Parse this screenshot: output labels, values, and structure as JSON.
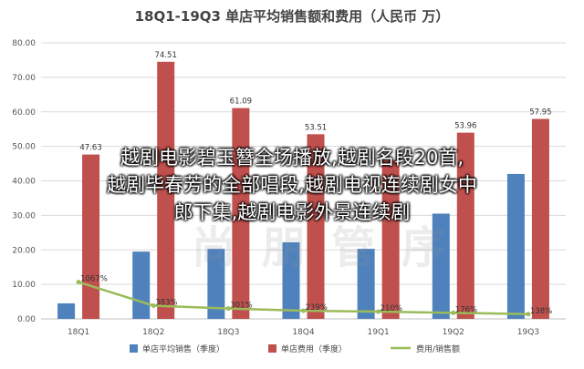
{
  "chart_data": {
    "type": "bar",
    "title": "18Q1-19Q3 单店平均销售额和费用（人民币 万）",
    "categories": [
      "18Q1",
      "18Q2",
      "18Q3",
      "18Q4",
      "19Q1",
      "19Q2",
      "19Q3"
    ],
    "yticks": [
      "0.00",
      "10.00",
      "20.00",
      "30.00",
      "40.00",
      "50.00",
      "60.00",
      "70.00",
      "80.00"
    ],
    "ylim": [
      0,
      80
    ],
    "grid": true,
    "legend_position": "bottom",
    "series": [
      {
        "name": "单店平均销售（季度）",
        "type": "bar",
        "color": "#4f81bd",
        "values": [
          4.5,
          19.5,
          20.3,
          22.2,
          20.3,
          30.5,
          42.0
        ],
        "labels": []
      },
      {
        "name": "单店费用（季度）",
        "type": "bar",
        "color": "#c0504d",
        "values": [
          47.63,
          74.51,
          61.09,
          53.51,
          46.0,
          53.96,
          57.95
        ],
        "labels": [
          "47.63",
          "74.51",
          "61.09",
          "53.51",
          "",
          "53.96",
          "57.95"
        ]
      },
      {
        "name": "费用/销售额",
        "type": "line",
        "color": "#9bbb59",
        "values": [
          10.67,
          3.83,
          3.01,
          2.39,
          2.1,
          1.76,
          1.38
        ],
        "labels": [
          "1067%",
          "383%",
          "301%",
          "239%",
          "210%",
          "176%",
          "138%"
        ]
      }
    ]
  },
  "overlay": {
    "lines": [
      "越剧电影碧玉簪全场播放,越剧名段20首,",
      "越剧毕春芳的全部唱段,越剧电视连续剧女中",
      "郎下集,越剧电影外景连续剧"
    ]
  }
}
